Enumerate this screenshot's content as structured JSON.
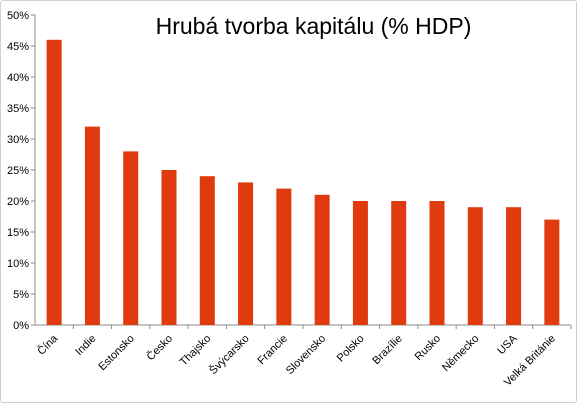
{
  "chart_data": {
    "type": "bar",
    "title": "Hrubá tvorba kapitálu (% HDP)",
    "xlabel": "",
    "ylabel": "",
    "categories": [
      "Čína",
      "Indie",
      "Estonsko",
      "Česko",
      "Thajsko",
      "Švýcarsko",
      "Francie",
      "Slovensko",
      "Polsko",
      "Brazílie",
      "Rusko",
      "Německo",
      "USA",
      "Velká Británie"
    ],
    "values": [
      46,
      32,
      28,
      25,
      24,
      23,
      22,
      21,
      20,
      20,
      20,
      19,
      19,
      17
    ],
    "ylim": [
      0,
      50
    ],
    "yticks": [
      "0%",
      "5%",
      "10%",
      "15%",
      "20%",
      "25%",
      "30%",
      "35%",
      "40%",
      "45%",
      "50%"
    ],
    "grid": false,
    "legend": "none",
    "bar_color": "#e03a0f",
    "axis_color": "#8c8c8c"
  }
}
